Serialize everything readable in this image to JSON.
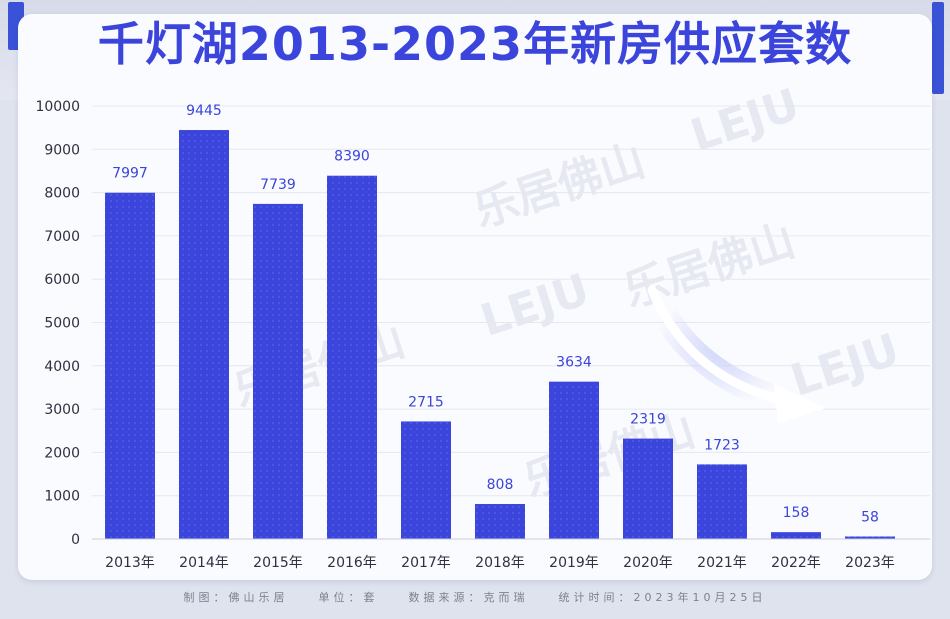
{
  "title": "千灯湖2013-2023年新房供应套数",
  "watermark": {
    "logo_text": "LEJU",
    "text": "乐居佛山"
  },
  "footer": {
    "maker": "制图：佛山乐居",
    "unit": "单位：套",
    "source": "数据来源：克而瑞",
    "time": "统计时间：2023年10月25日"
  },
  "colors": {
    "bar": "#3b45dc",
    "title": "#3b45dc",
    "accent": "#3a52d6",
    "arrow": "#ffffff"
  },
  "chart_data": {
    "type": "bar",
    "categories": [
      "2013年",
      "2014年",
      "2015年",
      "2016年",
      "2017年",
      "2018年",
      "2019年",
      "2020年",
      "2021年",
      "2022年",
      "2023年"
    ],
    "values": [
      7997,
      9445,
      7739,
      8390,
      2715,
      808,
      3634,
      2319,
      1723,
      158,
      58
    ],
    "ylim": [
      0,
      10000
    ],
    "yticks": [
      0,
      1000,
      2000,
      3000,
      4000,
      5000,
      6000,
      7000,
      8000,
      9000,
      10000
    ],
    "title": "千灯湖2013-2023年新房供应套数",
    "grid": true,
    "annotation": "downward arrow"
  }
}
